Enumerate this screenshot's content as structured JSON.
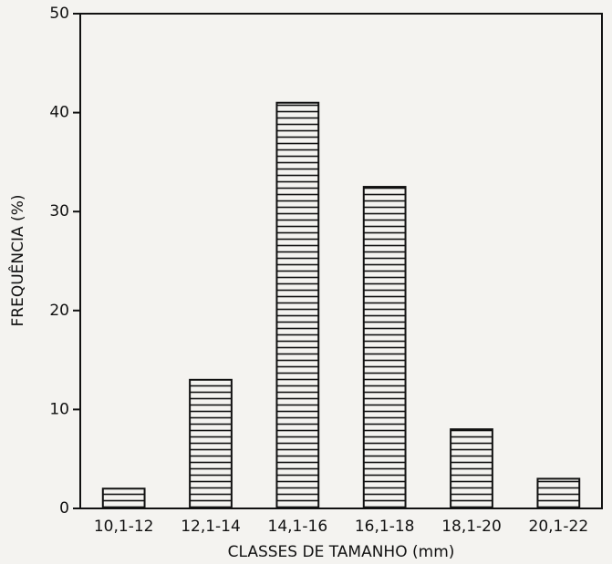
{
  "chart_data": {
    "type": "bar",
    "x_label": "CLASSES DE TAMANHO (mm)",
    "y_label": "FREQUÊNCIA (%)",
    "categories": [
      "10,1-12",
      "12,1-14",
      "14,1-16",
      "16,1-18",
      "18,1-20",
      "20,1-22"
    ],
    "values": [
      2,
      13,
      41,
      32.5,
      8,
      3
    ],
    "color": "#111111",
    "hatch": "horizontal",
    "ylim": [
      0,
      50
    ],
    "yticks": [
      0,
      10,
      20,
      30,
      40,
      50
    ]
  }
}
